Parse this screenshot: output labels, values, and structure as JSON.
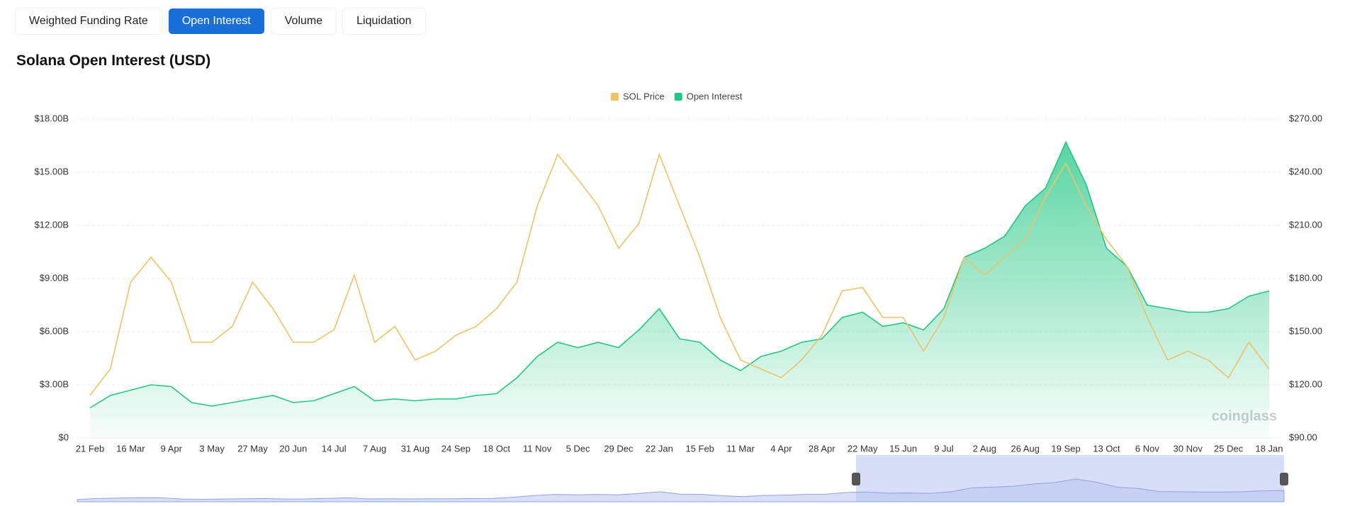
{
  "tabs": [
    "Weighted Funding Rate",
    "Open Interest",
    "Volume",
    "Liquidation"
  ],
  "active_tab": 1,
  "chart_data": {
    "type": "line",
    "title": "Solana Open Interest (USD)",
    "watermark": "coinglass",
    "categories": [
      "21 Feb",
      null,
      "16 Mar",
      null,
      "9 Apr",
      null,
      "3 May",
      null,
      "27 May",
      null,
      "20 Jun",
      null,
      "14 Jul",
      null,
      "7 Aug",
      null,
      "31 Aug",
      null,
      "24 Sep",
      null,
      "18 Oct",
      null,
      "11 Nov",
      null,
      "5 Dec",
      null,
      "29 Dec",
      null,
      "22 Jan",
      null,
      "15 Feb",
      null,
      "11 Mar",
      null,
      "4 Apr",
      null,
      "28 Apr",
      null,
      "22 May",
      null,
      "15 Jun",
      null,
      "9 Jul",
      null,
      "2 Aug",
      null,
      "26 Aug",
      null,
      "19 Sep",
      null,
      "13 Oct",
      null,
      "6 Nov",
      null,
      "30 Nov",
      null,
      "25 Dec",
      null,
      "18 Jan"
    ],
    "series": [
      {
        "name": "SOL Price",
        "color": "#ecc366",
        "axis": "y2",
        "values": [
          114,
          129,
          178,
          192,
          178,
          144,
          144,
          153,
          178,
          163,
          144,
          144,
          151,
          182,
          144,
          153,
          134,
          139,
          148,
          153,
          163,
          178,
          221,
          250,
          236,
          221,
          197,
          211,
          250,
          221,
          192,
          158,
          134,
          129,
          124,
          134,
          148,
          173,
          175,
          158,
          158,
          139,
          158,
          192,
          182,
          192,
          202,
          226,
          245,
          221,
          202,
          187,
          158,
          134,
          139,
          134,
          124,
          144,
          129
        ]
      },
      {
        "name": "Open Interest",
        "color": "#22c784",
        "axis": "y",
        "area": true,
        "values": [
          1.7,
          2.4,
          2.7,
          3.0,
          2.9,
          2.0,
          1.8,
          2.0,
          2.2,
          2.4,
          2.0,
          2.1,
          2.5,
          2.9,
          2.1,
          2.2,
          2.1,
          2.2,
          2.2,
          2.4,
          2.5,
          3.4,
          4.6,
          5.4,
          5.1,
          5.4,
          5.1,
          6.1,
          7.3,
          5.6,
          5.4,
          4.4,
          3.8,
          4.6,
          4.9,
          5.4,
          5.6,
          6.8,
          7.1,
          6.3,
          6.5,
          6.1,
          7.3,
          10.2,
          10.7,
          11.4,
          13.1,
          14.1,
          16.7,
          14.3,
          10.7,
          9.7,
          7.5,
          7.3,
          7.1,
          7.1,
          7.3,
          8.0,
          8.3
        ]
      }
    ],
    "ylim": [
      0,
      18
    ],
    "yticks": [
      {
        "value": 0,
        "label": "$0"
      },
      {
        "value": 3,
        "label": "$3.00B"
      },
      {
        "value": 6,
        "label": "$6.00B"
      },
      {
        "value": 9,
        "label": "$9.00B"
      },
      {
        "value": 12,
        "label": "$12.00B"
      },
      {
        "value": 15,
        "label": "$15.00B"
      },
      {
        "value": 18,
        "label": "$18.00B"
      }
    ],
    "y2lim": [
      90,
      270
    ],
    "y2ticks": [
      {
        "value": 90,
        "label": "$90.00"
      },
      {
        "value": 120,
        "label": "$120.00"
      },
      {
        "value": 150,
        "label": "$150.00"
      },
      {
        "value": 180,
        "label": "$180.00"
      },
      {
        "value": 210,
        "label": "$210.00"
      },
      {
        "value": 240,
        "label": "$240.00"
      },
      {
        "value": 270,
        "label": "$270.00"
      }
    ],
    "grid": true,
    "legend": "top"
  }
}
